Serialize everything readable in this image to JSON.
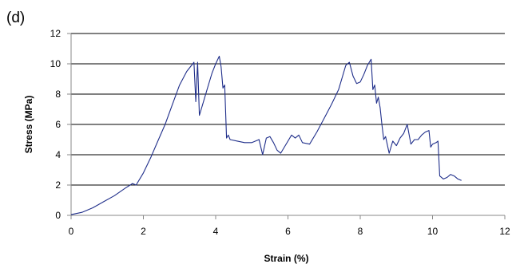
{
  "chart_data": {
    "type": "line",
    "panel_label": "(d)",
    "title": "",
    "xlabel": "Strain (%)",
    "ylabel": "Stress (MPa)",
    "xlim": [
      0,
      12
    ],
    "ylim": [
      0,
      12
    ],
    "x_ticks": [
      0,
      2,
      4,
      6,
      8,
      10,
      12
    ],
    "y_ticks": [
      0,
      2,
      4,
      6,
      8,
      10,
      12
    ],
    "grid": "horizontal",
    "line_color": "#1f2e8a",
    "series": [
      {
        "x": [
          0.0,
          0.3,
          0.6,
          0.9,
          1.2,
          1.5,
          1.7,
          1.8,
          2.0,
          2.2,
          2.4,
          2.6,
          2.8,
          3.0,
          3.2,
          3.4,
          3.45,
          3.5,
          3.55,
          3.6,
          3.7,
          3.8,
          3.9,
          4.0,
          4.1,
          4.15,
          4.2,
          4.25,
          4.3,
          4.35,
          4.4,
          4.6,
          4.8,
          5.0,
          5.2,
          5.3,
          5.4,
          5.5,
          5.6,
          5.7,
          5.8,
          6.0,
          6.1,
          6.2,
          6.3,
          6.4,
          6.6,
          6.8,
          7.0,
          7.2,
          7.4,
          7.5,
          7.6,
          7.7,
          7.8,
          7.9,
          8.0,
          8.1,
          8.2,
          8.3,
          8.35,
          8.4,
          8.45,
          8.5,
          8.55,
          8.6,
          8.65,
          8.7,
          8.8,
          8.9,
          9.0,
          9.1,
          9.2,
          9.3,
          9.4,
          9.5,
          9.6,
          9.7,
          9.8,
          9.9,
          9.95,
          10.0,
          10.1,
          10.15,
          10.2,
          10.3,
          10.4,
          10.5,
          10.6,
          10.7,
          10.8
        ],
        "y": [
          0.05,
          0.2,
          0.5,
          0.9,
          1.3,
          1.8,
          2.1,
          2.0,
          2.8,
          3.8,
          4.9,
          6.0,
          7.3,
          8.6,
          9.5,
          10.1,
          7.5,
          10.1,
          6.6,
          7.0,
          7.8,
          8.6,
          9.4,
          10.0,
          10.5,
          9.8,
          8.4,
          8.6,
          5.1,
          5.3,
          5.0,
          4.9,
          4.8,
          4.8,
          5.0,
          4.0,
          5.1,
          5.2,
          4.8,
          4.3,
          4.1,
          4.9,
          5.3,
          5.1,
          5.3,
          4.8,
          4.7,
          5.5,
          6.4,
          7.3,
          8.3,
          9.1,
          9.9,
          10.1,
          9.2,
          8.7,
          8.8,
          9.3,
          9.9,
          10.3,
          8.3,
          8.6,
          7.4,
          7.8,
          7.1,
          6.0,
          5.0,
          5.2,
          4.1,
          4.9,
          4.6,
          5.1,
          5.4,
          6.0,
          4.7,
          5.0,
          5.0,
          5.3,
          5.5,
          5.6,
          4.5,
          4.7,
          4.8,
          4.9,
          2.6,
          2.4,
          2.5,
          2.7,
          2.6,
          2.4,
          2.3
        ]
      }
    ]
  }
}
